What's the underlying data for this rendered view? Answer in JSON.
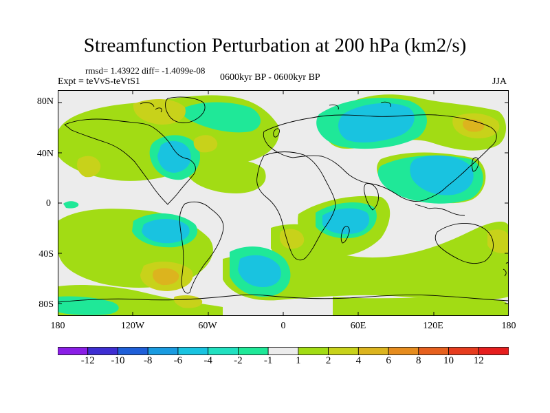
{
  "title": "Streamfunction Perturbation at 200 hPa (km2/s)",
  "stats": "rmsd= 1.43922 diff= -1.4099e-08",
  "experiment": "Expt = teVvS-teVtS1",
  "period": "0600kyr BP - 0600kyr BP",
  "season": "JJA",
  "lat_labels": [
    "80N",
    "40N",
    "0",
    "40S",
    "80S"
  ],
  "lon_labels": [
    "180",
    "120W",
    "60W",
    "0",
    "60E",
    "120E",
    "180"
  ],
  "colorbar": {
    "labels": [
      "-12",
      "-10",
      "-8",
      "-6",
      "-4",
      "-2",
      "-1",
      "1",
      "2",
      "4",
      "6",
      "8",
      "10",
      "12"
    ],
    "colors": [
      "#8a1ee6",
      "#3e2ed2",
      "#1f5fd8",
      "#1a9be0",
      "#19c3e0",
      "#21e0c0",
      "#1fe898",
      "#ececec",
      "#a2dc14",
      "#c8d21a",
      "#dcb41e",
      "#e68c1e",
      "#e6601e",
      "#e63c1e",
      "#e61e1e"
    ]
  },
  "palette": {
    "background": "#ececec",
    "green": "#a2dc14",
    "mint": "#1fe898",
    "cyan": "#19c3e0",
    "olive": "#c8d21a",
    "gold": "#dcb41e"
  }
}
